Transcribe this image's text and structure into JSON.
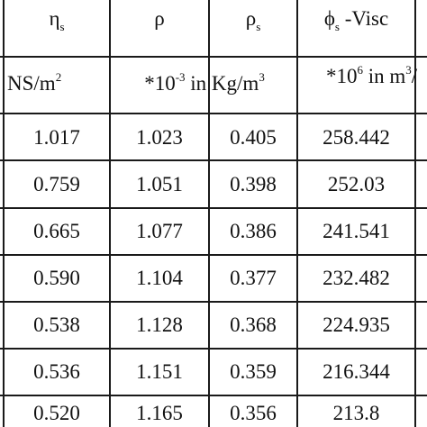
{
  "header": {
    "col1_symbol": "η",
    "col1_sub": "s",
    "col2_symbol": "ρ",
    "col3_symbol": "ρ",
    "col3_sub": "s",
    "col4_symbol": "ϕ",
    "col4_sub": "s",
    "col4_rest": " -Visc"
  },
  "units": {
    "col1_text": "NS/m",
    "col1_exp": "2",
    "col23_prefix": "*10",
    "col23_exp": "-3",
    "col23_text": " in Kg/m",
    "col23_exp2": "3",
    "col4_prefix": "*10",
    "col4_exp": "6",
    "col4_text": " in m",
    "col4_exp2": "3",
    "col4_tail": "/"
  },
  "rows": [
    {
      "eta": "1.017",
      "rho": "1.023",
      "rho_s": "0.405",
      "phi": "258.442"
    },
    {
      "eta": "0.759",
      "rho": "1.051",
      "rho_s": "0.398",
      "phi": "252.03"
    },
    {
      "eta": "0.665",
      "rho": "1.077",
      "rho_s": "0.386",
      "phi": "241.541"
    },
    {
      "eta": "0.590",
      "rho": "1.104",
      "rho_s": "0.377",
      "phi": "232.482"
    },
    {
      "eta": "0.538",
      "rho": "1.128",
      "rho_s": "0.368",
      "phi": "224.935"
    },
    {
      "eta": "0.536",
      "rho": "1.151",
      "rho_s": "0.359",
      "phi": "216.344"
    },
    {
      "eta": "0.520",
      "rho": "1.165",
      "rho_s": "0.356",
      "phi": "213.8"
    }
  ]
}
